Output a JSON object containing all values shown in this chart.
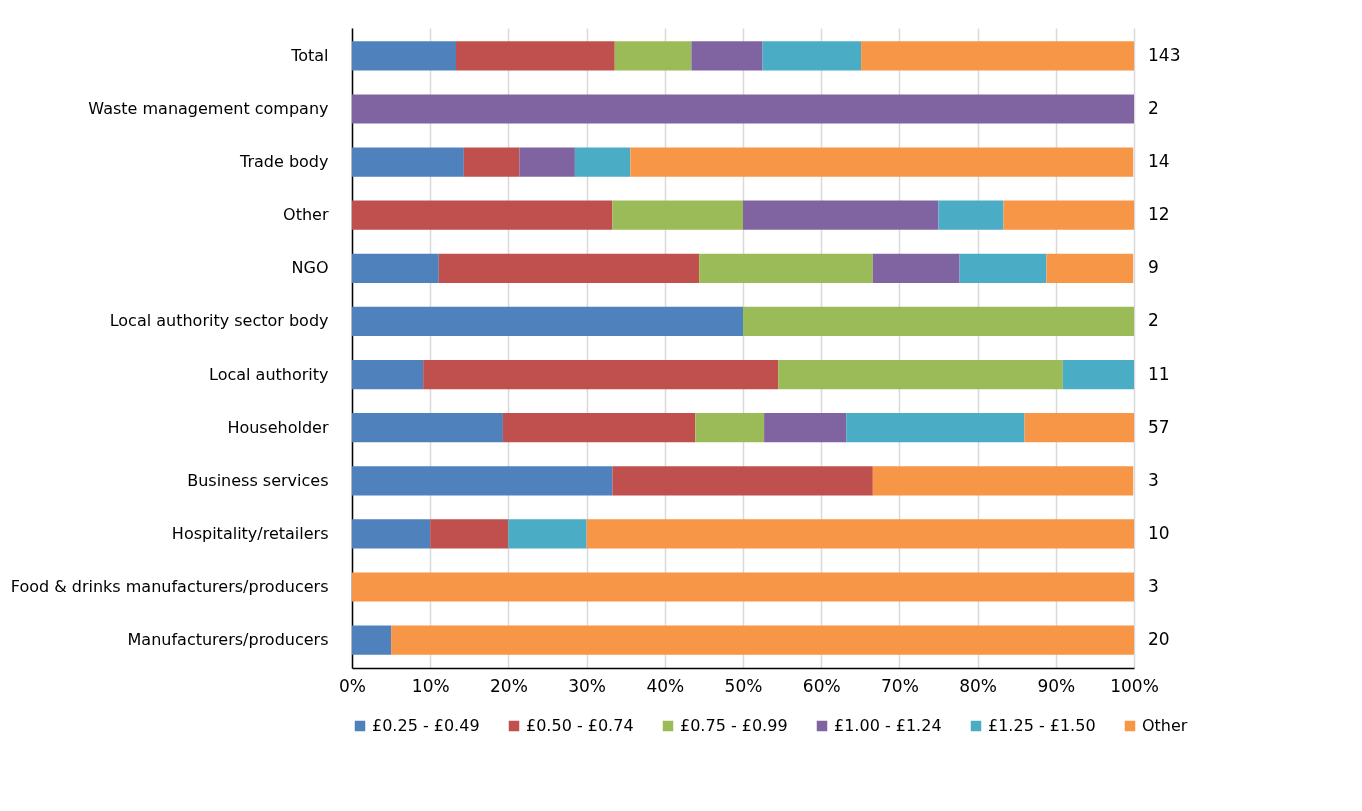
{
  "chart_data": {
    "type": "bar",
    "orientation": "horizontal",
    "stacked": true,
    "categories": [
      "Total",
      "Waste management company",
      "Trade body",
      "Other",
      "NGO",
      "Local authority sector body",
      "Local authority",
      "Householder",
      "Business services",
      "Hospitality/retailers",
      "Food & drinks manufacturers/producers",
      "Manufacturers/producers"
    ],
    "series": [
      {
        "name": "£0.25 - £0.49",
        "color": "#4f81bd",
        "values": [
          13.3,
          0,
          14.3,
          0,
          11.1,
          50,
          9.1,
          19.3,
          33.3,
          10,
          0,
          5
        ]
      },
      {
        "name": "£0.50 - £0.74",
        "color": "#c0504d",
        "values": [
          20.3,
          0,
          7.1,
          33.3,
          33.3,
          0,
          45.4,
          24.6,
          33.3,
          10,
          0,
          0
        ]
      },
      {
        "name": "£0.75 - £0.99",
        "color": "#9bbb59",
        "values": [
          9.8,
          0,
          0,
          16.7,
          22.2,
          50,
          36.4,
          8.8,
          0,
          0,
          0,
          0
        ]
      },
      {
        "name": "£1.00 - £1.24",
        "color": "#8064a2",
        "values": [
          9.1,
          100,
          7.1,
          25,
          11.1,
          0,
          0,
          10.5,
          0,
          0,
          0,
          0
        ]
      },
      {
        "name": "£1.25 - £1.50",
        "color": "#4bacc6",
        "values": [
          12.6,
          0,
          7.1,
          8.3,
          11.1,
          0,
          9.1,
          22.8,
          0,
          10,
          0,
          0
        ]
      },
      {
        "name": "Other",
        "color": "#f79646",
        "values": [
          34.9,
          0,
          64.3,
          16.7,
          11.1,
          0,
          0,
          14.0,
          33.3,
          70,
          100,
          95
        ]
      }
    ],
    "xlim": [
      0,
      100
    ],
    "xticks": [
      {
        "value": 0,
        "label": "0%"
      },
      {
        "value": 10,
        "label": "10%"
      },
      {
        "value": 20,
        "label": "20%"
      },
      {
        "value": 30,
        "label": "30%"
      },
      {
        "value": 40,
        "label": "40%"
      },
      {
        "value": 50,
        "label": "50%"
      },
      {
        "value": 60,
        "label": "60%"
      },
      {
        "value": 70,
        "label": "70%"
      },
      {
        "value": 80,
        "label": "80%"
      },
      {
        "value": 90,
        "label": "90%"
      },
      {
        "value": 100,
        "label": "100%"
      }
    ],
    "grid": "x",
    "legend": "bottom",
    "annotations": [
      "143",
      "2",
      "14",
      "12",
      "9",
      "2",
      "11",
      "57",
      "3",
      "10",
      "3",
      "20"
    ]
  }
}
